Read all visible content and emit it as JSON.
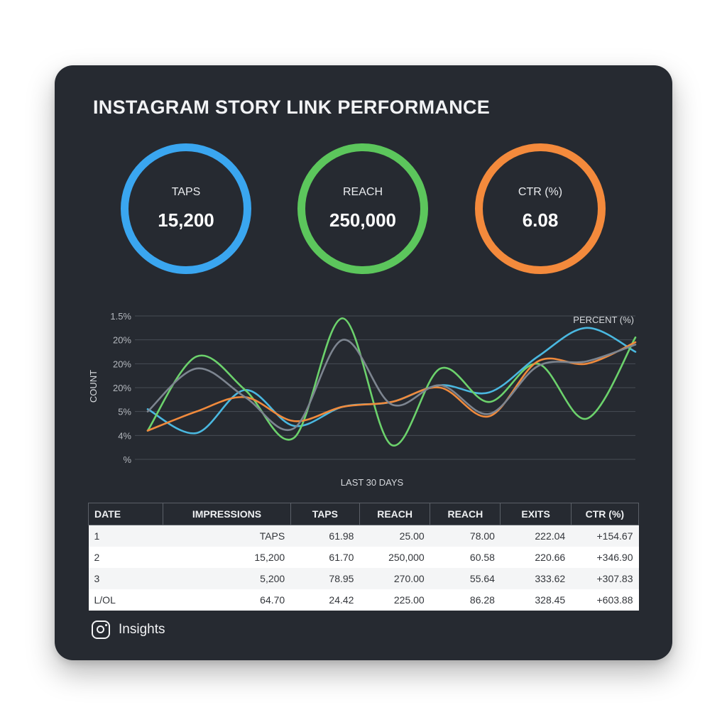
{
  "title": "INSTAGRAM STORY LINK PERFORMANCE",
  "gauges": [
    {
      "label": "TAPS",
      "value": "15,200",
      "color": "#3aa6f0"
    },
    {
      "label": "REACH",
      "value": "250,000",
      "color": "#5cc65c"
    },
    {
      "label": "CTR (%)",
      "value": "6.08",
      "color": "#f48a3c"
    }
  ],
  "chart_data": {
    "type": "line",
    "ylabel": "COUNT",
    "xlabel": "LAST 30 DAYS",
    "series_label": "PERCENT (%)",
    "y_tick_labels": [
      "1.5%",
      "20%",
      "20%",
      "20%",
      "5%",
      "4%",
      "%"
    ],
    "grid": true,
    "x": [
      0,
      3,
      6,
      9,
      12,
      15,
      18,
      21,
      24,
      27,
      30
    ],
    "series": [
      {
        "color": "#4ab8e0",
        "values": [
          2.1,
          1.1,
          2.9,
          1.4,
          2.2,
          2.4,
          3.1,
          2.8,
          4.3,
          5.5,
          4.5
        ]
      },
      {
        "color": "#6cd26c",
        "values": [
          1.2,
          4.3,
          2.9,
          0.9,
          5.9,
          0.6,
          3.8,
          2.4,
          4.0,
          1.7,
          5.1
        ]
      },
      {
        "color": "#f08a3c",
        "values": [
          1.2,
          2.0,
          2.6,
          1.6,
          2.2,
          2.4,
          3.0,
          1.8,
          4.1,
          4.0,
          4.9
        ]
      },
      {
        "color": "#7d8590",
        "values": [
          2.0,
          3.8,
          2.6,
          1.3,
          5.0,
          2.3,
          3.1,
          1.9,
          3.9,
          4.1,
          4.8
        ]
      }
    ]
  },
  "table": {
    "headers": [
      "DATE",
      "IMPRESSIONS",
      "TAPS",
      "REACH",
      "REACH",
      "EXITS",
      "CTR (%)"
    ],
    "rows": [
      [
        "1",
        "TAPS",
        "61.98",
        "25.00",
        "78.00",
        "222.04",
        "+154.67"
      ],
      [
        "2",
        "15,200",
        "61.70",
        "250,000",
        "60.58",
        "220.66",
        "+346.90"
      ],
      [
        "3",
        "5,200",
        "78.95",
        "270.00",
        "55.64",
        "333.62",
        "+307.83"
      ],
      [
        "L/OL",
        "64.70",
        "24.42",
        "225.00",
        "86.28",
        "328.45",
        "+603.88"
      ]
    ]
  },
  "footer": {
    "label": "Insights",
    "icon": "instagram-icon"
  }
}
